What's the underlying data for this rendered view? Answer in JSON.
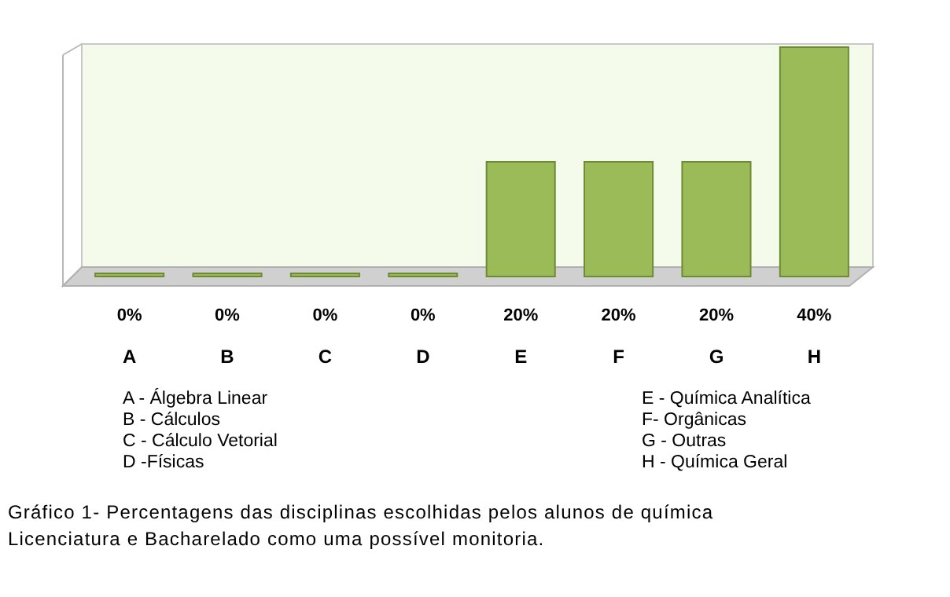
{
  "chart_data": {
    "type": "bar",
    "categories": [
      "A",
      "B",
      "C",
      "D",
      "E",
      "F",
      "G",
      "H"
    ],
    "values": [
      0,
      0,
      0,
      0,
      20,
      20,
      20,
      40
    ],
    "value_labels": [
      "0%",
      "0%",
      "0%",
      "0%",
      "20%",
      "20%",
      "20%",
      "40%"
    ],
    "color": "#9bbb59",
    "grid": false,
    "annotations": [
      "A - Álgebra Linear",
      "B - Cálculos",
      "C - Cálculo Vetorial",
      "D -Físicas",
      "E - Química Analítica",
      "F- Orgânicas",
      "G - Outras",
      "H - Química Geral",
      "Gráfico 1- Percentagens das disciplinas escolhidas pelos alunos de química",
      "Licenciatura e Bacharelado como uma possível monitoria."
    ]
  }
}
